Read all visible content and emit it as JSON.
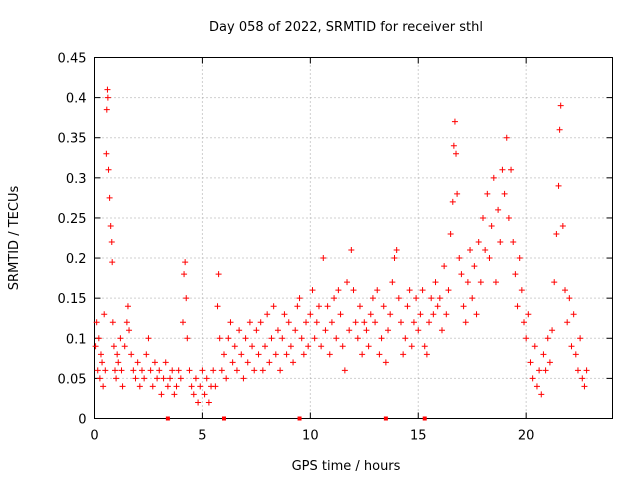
{
  "chart_data": {
    "type": "scatter",
    "title": "Day 058 of 2022, SRMTID for receiver sthl",
    "xlabel": "GPS time / hours",
    "ylabel": "SRMTID / TECUs",
    "xlim": [
      0,
      24
    ],
    "ylim": [
      0,
      0.45
    ],
    "xticks": [
      "0",
      "5",
      "10",
      "15",
      "20"
    ],
    "yticks": [
      "0",
      "0.05",
      "0.1",
      "0.15",
      "0.2",
      "0.25",
      "0.3",
      "0.35",
      "0.4",
      "0.45"
    ],
    "grid": true,
    "marker": "+",
    "color": "#ff0000",
    "series": [
      {
        "points": [
          [
            0.05,
            0.09
          ],
          [
            0.1,
            0.12
          ],
          [
            0.15,
            0.06
          ],
          [
            0.2,
            0.1
          ],
          [
            0.25,
            0.05
          ],
          [
            0.3,
            0.08
          ],
          [
            0.35,
            0.07
          ],
          [
            0.4,
            0.04
          ],
          [
            0.45,
            0.13
          ],
          [
            0.5,
            0.06
          ],
          [
            0.55,
            0.33
          ],
          [
            0.57,
            0.385
          ],
          [
            0.6,
            0.41
          ],
          [
            0.62,
            0.4
          ],
          [
            0.65,
            0.31
          ],
          [
            0.7,
            0.275
          ],
          [
            0.75,
            0.24
          ],
          [
            0.8,
            0.22
          ],
          [
            0.82,
            0.195
          ],
          [
            0.85,
            0.12
          ],
          [
            0.9,
            0.09
          ],
          [
            0.95,
            0.06
          ],
          [
            1.0,
            0.05
          ],
          [
            1.05,
            0.08
          ],
          [
            1.1,
            0.07
          ],
          [
            1.2,
            0.1
          ],
          [
            1.25,
            0.06
          ],
          [
            1.3,
            0.04
          ],
          [
            1.4,
            0.09
          ],
          [
            1.5,
            0.12
          ],
          [
            1.55,
            0.14
          ],
          [
            1.6,
            0.11
          ],
          [
            1.7,
            0.08
          ],
          [
            1.8,
            0.06
          ],
          [
            1.9,
            0.05
          ],
          [
            2.0,
            0.07
          ],
          [
            2.1,
            0.04
          ],
          [
            2.2,
            0.06
          ],
          [
            2.3,
            0.05
          ],
          [
            2.4,
            0.08
          ],
          [
            2.5,
            0.1
          ],
          [
            2.6,
            0.06
          ],
          [
            2.7,
            0.04
          ],
          [
            2.8,
            0.07
          ],
          [
            2.9,
            0.05
          ],
          [
            3.0,
            0.06
          ],
          [
            3.1,
            0.03
          ],
          [
            3.2,
            0.05
          ],
          [
            3.3,
            0.07
          ],
          [
            3.4,
            0.04
          ],
          [
            3.5,
            0.05
          ],
          [
            3.6,
            0.06
          ],
          [
            3.7,
            0.03
          ],
          [
            3.8,
            0.04
          ],
          [
            3.9,
            0.06
          ],
          [
            4.0,
            0.05
          ],
          [
            4.1,
            0.12
          ],
          [
            4.15,
            0.18
          ],
          [
            4.2,
            0.195
          ],
          [
            4.25,
            0.15
          ],
          [
            4.3,
            0.1
          ],
          [
            4.4,
            0.06
          ],
          [
            4.5,
            0.04
          ],
          [
            4.6,
            0.03
          ],
          [
            4.7,
            0.05
          ],
          [
            4.8,
            0.02
          ],
          [
            4.9,
            0.04
          ],
          [
            5.0,
            0.06
          ],
          [
            5.1,
            0.03
          ],
          [
            5.2,
            0.05
          ],
          [
            5.3,
            0.02
          ],
          [
            5.4,
            0.04
          ],
          [
            5.5,
            0.06
          ],
          [
            5.6,
            0.04
          ],
          [
            5.7,
            0.14
          ],
          [
            5.75,
            0.18
          ],
          [
            5.8,
            0.1
          ],
          [
            5.9,
            0.06
          ],
          [
            6.0,
            0.08
          ],
          [
            6.1,
            0.05
          ],
          [
            6.2,
            0.1
          ],
          [
            6.3,
            0.12
          ],
          [
            6.4,
            0.07
          ],
          [
            6.5,
            0.09
          ],
          [
            6.6,
            0.06
          ],
          [
            6.7,
            0.11
          ],
          [
            6.8,
            0.08
          ],
          [
            6.9,
            0.05
          ],
          [
            7.0,
            0.1
          ],
          [
            7.1,
            0.07
          ],
          [
            7.2,
            0.12
          ],
          [
            7.3,
            0.09
          ],
          [
            7.4,
            0.06
          ],
          [
            7.5,
            0.11
          ],
          [
            7.6,
            0.08
          ],
          [
            7.7,
            0.12
          ],
          [
            7.8,
            0.06
          ],
          [
            7.9,
            0.09
          ],
          [
            8.0,
            0.13
          ],
          [
            8.1,
            0.07
          ],
          [
            8.2,
            0.1
          ],
          [
            8.3,
            0.14
          ],
          [
            8.4,
            0.08
          ],
          [
            8.5,
            0.11
          ],
          [
            8.6,
            0.06
          ],
          [
            8.7,
            0.1
          ],
          [
            8.8,
            0.13
          ],
          [
            8.9,
            0.08
          ],
          [
            9.0,
            0.12
          ],
          [
            9.1,
            0.09
          ],
          [
            9.2,
            0.07
          ],
          [
            9.3,
            0.11
          ],
          [
            9.4,
            0.14
          ],
          [
            9.5,
            0.15
          ],
          [
            9.6,
            0.1
          ],
          [
            9.7,
            0.08
          ],
          [
            9.8,
            0.12
          ],
          [
            9.9,
            0.09
          ],
          [
            10.0,
            0.13
          ],
          [
            10.1,
            0.16
          ],
          [
            10.2,
            0.1
          ],
          [
            10.3,
            0.12
          ],
          [
            10.4,
            0.14
          ],
          [
            10.5,
            0.09
          ],
          [
            10.6,
            0.2
          ],
          [
            10.7,
            0.11
          ],
          [
            10.8,
            0.14
          ],
          [
            10.9,
            0.08
          ],
          [
            11.0,
            0.12
          ],
          [
            11.1,
            0.15
          ],
          [
            11.2,
            0.1
          ],
          [
            11.3,
            0.16
          ],
          [
            11.4,
            0.13
          ],
          [
            11.5,
            0.09
          ],
          [
            11.6,
            0.06
          ],
          [
            11.7,
            0.17
          ],
          [
            11.8,
            0.11
          ],
          [
            11.9,
            0.21
          ],
          [
            12.0,
            0.16
          ],
          [
            12.1,
            0.12
          ],
          [
            12.2,
            0.1
          ],
          [
            12.3,
            0.14
          ],
          [
            12.4,
            0.08
          ],
          [
            12.5,
            0.12
          ],
          [
            12.6,
            0.11
          ],
          [
            12.7,
            0.09
          ],
          [
            12.8,
            0.13
          ],
          [
            12.9,
            0.15
          ],
          [
            13.0,
            0.12
          ],
          [
            13.1,
            0.16
          ],
          [
            13.2,
            0.08
          ],
          [
            13.3,
            0.1
          ],
          [
            13.4,
            0.14
          ],
          [
            13.5,
            0.07
          ],
          [
            13.6,
            0.11
          ],
          [
            13.7,
            0.13
          ],
          [
            13.8,
            0.17
          ],
          [
            13.9,
            0.2
          ],
          [
            14.0,
            0.21
          ],
          [
            14.1,
            0.15
          ],
          [
            14.2,
            0.12
          ],
          [
            14.3,
            0.08
          ],
          [
            14.4,
            0.1
          ],
          [
            14.5,
            0.14
          ],
          [
            14.6,
            0.16
          ],
          [
            14.7,
            0.09
          ],
          [
            14.8,
            0.12
          ],
          [
            14.9,
            0.15
          ],
          [
            15.0,
            0.11
          ],
          [
            15.1,
            0.13
          ],
          [
            15.2,
            0.16
          ],
          [
            15.3,
            0.09
          ],
          [
            15.4,
            0.08
          ],
          [
            15.5,
            0.12
          ],
          [
            15.6,
            0.15
          ],
          [
            15.7,
            0.13
          ],
          [
            15.8,
            0.17
          ],
          [
            15.9,
            0.14
          ],
          [
            16.0,
            0.15
          ],
          [
            16.1,
            0.11
          ],
          [
            16.2,
            0.19
          ],
          [
            16.3,
            0.13
          ],
          [
            16.4,
            0.16
          ],
          [
            16.5,
            0.23
          ],
          [
            16.6,
            0.27
          ],
          [
            16.65,
            0.34
          ],
          [
            16.7,
            0.37
          ],
          [
            16.75,
            0.33
          ],
          [
            16.8,
            0.28
          ],
          [
            16.9,
            0.2
          ],
          [
            17.0,
            0.18
          ],
          [
            17.1,
            0.14
          ],
          [
            17.2,
            0.12
          ],
          [
            17.3,
            0.17
          ],
          [
            17.4,
            0.21
          ],
          [
            17.5,
            0.15
          ],
          [
            17.6,
            0.19
          ],
          [
            17.7,
            0.13
          ],
          [
            17.8,
            0.22
          ],
          [
            17.9,
            0.17
          ],
          [
            18.0,
            0.25
          ],
          [
            18.1,
            0.21
          ],
          [
            18.2,
            0.28
          ],
          [
            18.3,
            0.2
          ],
          [
            18.4,
            0.24
          ],
          [
            18.5,
            0.3
          ],
          [
            18.6,
            0.17
          ],
          [
            18.7,
            0.26
          ],
          [
            18.8,
            0.22
          ],
          [
            18.9,
            0.31
          ],
          [
            19.0,
            0.28
          ],
          [
            19.1,
            0.35
          ],
          [
            19.2,
            0.25
          ],
          [
            19.3,
            0.31
          ],
          [
            19.4,
            0.22
          ],
          [
            19.5,
            0.18
          ],
          [
            19.6,
            0.14
          ],
          [
            19.7,
            0.2
          ],
          [
            19.8,
            0.16
          ],
          [
            19.9,
            0.12
          ],
          [
            20.0,
            0.1
          ],
          [
            20.1,
            0.13
          ],
          [
            20.2,
            0.07
          ],
          [
            20.3,
            0.05
          ],
          [
            20.4,
            0.09
          ],
          [
            20.5,
            0.04
          ],
          [
            20.6,
            0.06
          ],
          [
            20.7,
            0.03
          ],
          [
            20.8,
            0.08
          ],
          [
            20.9,
            0.06
          ],
          [
            21.0,
            0.1
          ],
          [
            21.1,
            0.07
          ],
          [
            21.2,
            0.11
          ],
          [
            21.3,
            0.17
          ],
          [
            21.4,
            0.23
          ],
          [
            21.5,
            0.29
          ],
          [
            21.55,
            0.36
          ],
          [
            21.6,
            0.39
          ],
          [
            21.7,
            0.24
          ],
          [
            21.8,
            0.16
          ],
          [
            21.9,
            0.12
          ],
          [
            22.0,
            0.15
          ],
          [
            22.1,
            0.09
          ],
          [
            22.2,
            0.13
          ],
          [
            22.3,
            0.08
          ],
          [
            22.4,
            0.06
          ],
          [
            22.5,
            0.1
          ],
          [
            22.6,
            0.05
          ],
          [
            22.7,
            0.04
          ],
          [
            22.8,
            0.06
          ]
        ]
      }
    ],
    "axis_markers_x": [
      3.4,
      6.0,
      9.5,
      13.5,
      15.3
    ]
  }
}
